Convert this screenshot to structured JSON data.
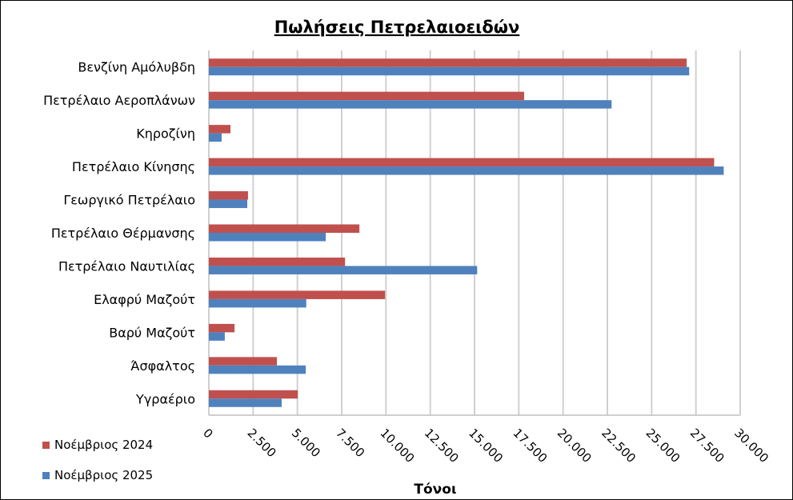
{
  "chart_data": {
    "type": "bar",
    "orientation": "horizontal",
    "title": "Πωλήσεις Πετρελαιοειδών",
    "xlabel": "Τόνοι",
    "ylabel": "",
    "xlim": [
      0,
      30000
    ],
    "x_ticks": [
      0,
      2500,
      5000,
      7500,
      10000,
      12500,
      15000,
      17500,
      20000,
      22500,
      25000,
      27500,
      30000
    ],
    "x_tick_labels": [
      "0",
      "2.500",
      "5.000",
      "7.500",
      "10.000",
      "12.500",
      "15.000",
      "17.500",
      "20.000",
      "22.500",
      "25.000",
      "27.500",
      "30.000"
    ],
    "grid": true,
    "legend_position": "bottom-left",
    "categories": [
      "Βενζίνη Αμόλυβδη",
      "Πετρέλαιο Αεροπλάνων",
      "Κηροζίνη",
      "Πετρέλαιο Κίνησης",
      "Γεωργικό Πετρέλαιο",
      "Πετρέλαιο Θέρμανσης",
      "Πετρέλαιο Ναυτιλίας",
      "Ελαφρύ Μαζούτ",
      "Βαρύ Μαζούτ",
      "Άσφαλτος",
      "Υγραέριο"
    ],
    "series": [
      {
        "name": "Νοέμβριος 2024",
        "color": "#C0504D",
        "values": [
          26980,
          17800,
          1220,
          28530,
          2210,
          8500,
          7690,
          9950,
          1450,
          3840,
          5020
        ]
      },
      {
        "name": "Νοέμβριος 2025",
        "color": "#4F81BD",
        "values": [
          27120,
          22740,
          720,
          29070,
          2170,
          6600,
          15150,
          5500,
          900,
          5470,
          4110
        ]
      }
    ]
  }
}
